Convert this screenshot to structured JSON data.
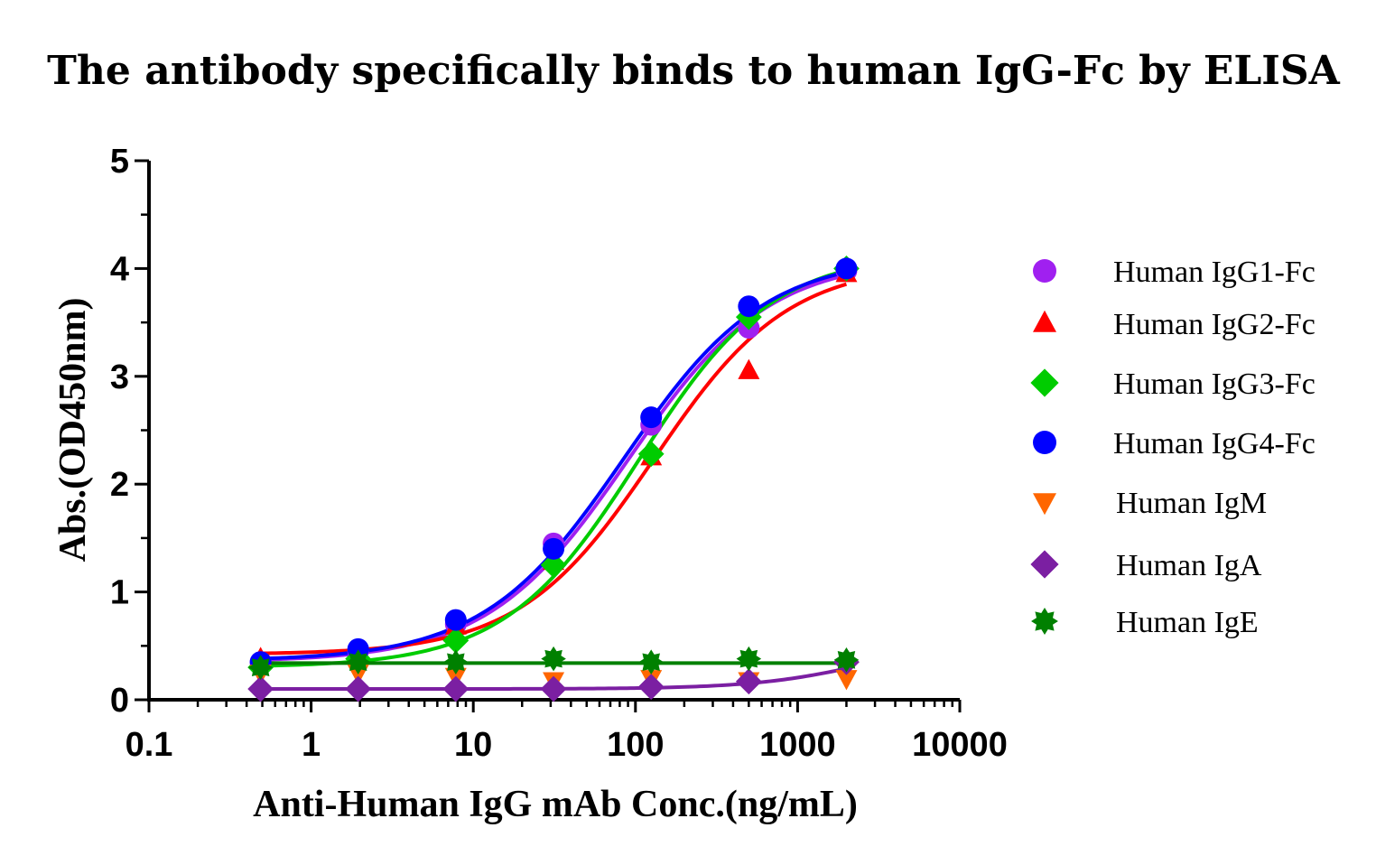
{
  "chart_data": {
    "type": "scatter",
    "title": "The antibody specifically binds to human IgG-Fc  by ELISA",
    "xlabel": "Anti-Human IgG mAb Conc.(ng/mL)",
    "ylabel": "Abs.(OD450nm)",
    "xscale": "log",
    "xlim": [
      0.1,
      10000
    ],
    "ylim": [
      0,
      5
    ],
    "xticks": [
      0.1,
      1,
      10,
      100,
      1000,
      10000
    ],
    "xtick_labels": [
      "0.1",
      "1",
      "10",
      "100",
      "1000",
      "10000"
    ],
    "yticks": [
      0,
      1,
      2,
      3,
      4,
      5
    ],
    "ytick_labels": [
      "0",
      "1",
      "2",
      "3",
      "4",
      "5"
    ],
    "legend_position": "right",
    "x": [
      0.488,
      1.95,
      7.8,
      31.25,
      125,
      500,
      2000
    ],
    "series": [
      {
        "name": "Human IgG1-Fc",
        "color": "#a020f0",
        "marker": "circle",
        "values": [
          0.35,
          0.45,
          0.7,
          1.45,
          2.55,
          3.45,
          3.98
        ],
        "curve": {
          "bottom": 0.35,
          "top": 4.1,
          "ec50": 90,
          "hill": 1.0
        }
      },
      {
        "name": "Human IgG2-Fc",
        "color": "#ff0000",
        "marker": "triangle-up",
        "values": [
          0.38,
          0.45,
          0.68,
          1.28,
          2.25,
          3.05,
          3.95
        ],
        "curve": {
          "bottom": 0.42,
          "top": 4.05,
          "ec50": 130,
          "hill": 1.05
        }
      },
      {
        "name": "Human IgG3-Fc",
        "color": "#00cc00",
        "marker": "diamond",
        "values": [
          0.3,
          0.38,
          0.55,
          1.25,
          2.28,
          3.55,
          4.0
        ],
        "curve": {
          "bottom": 0.3,
          "top": 4.15,
          "ec50": 105,
          "hill": 1.05
        }
      },
      {
        "name": "Human IgG4-Fc",
        "color": "#0000ff",
        "marker": "circle",
        "values": [
          0.35,
          0.47,
          0.74,
          1.4,
          2.62,
          3.65,
          4.0
        ],
        "curve": {
          "bottom": 0.36,
          "top": 4.12,
          "ec50": 85,
          "hill": 1.0
        }
      },
      {
        "name": "Human IgM",
        "color": "#ff6600",
        "marker": "triangle-down",
        "values": [
          0.25,
          0.25,
          0.22,
          0.18,
          0.2,
          0.18,
          0.2
        ],
        "curve": null
      },
      {
        "name": "Human IgA",
        "color": "#7b1fa2",
        "marker": "diamond",
        "values": [
          0.1,
          0.1,
          0.1,
          0.1,
          0.12,
          0.17,
          0.35
        ],
        "curve": {
          "bottom": 0.1,
          "top": 0.6,
          "ec50": 3000,
          "hill": 1.2
        }
      },
      {
        "name": "Human IgE",
        "color": "#008000",
        "marker": "star",
        "values": [
          0.3,
          0.35,
          0.35,
          0.38,
          0.35,
          0.38,
          0.37
        ],
        "curve": {
          "flat": 0.34
        }
      }
    ]
  }
}
